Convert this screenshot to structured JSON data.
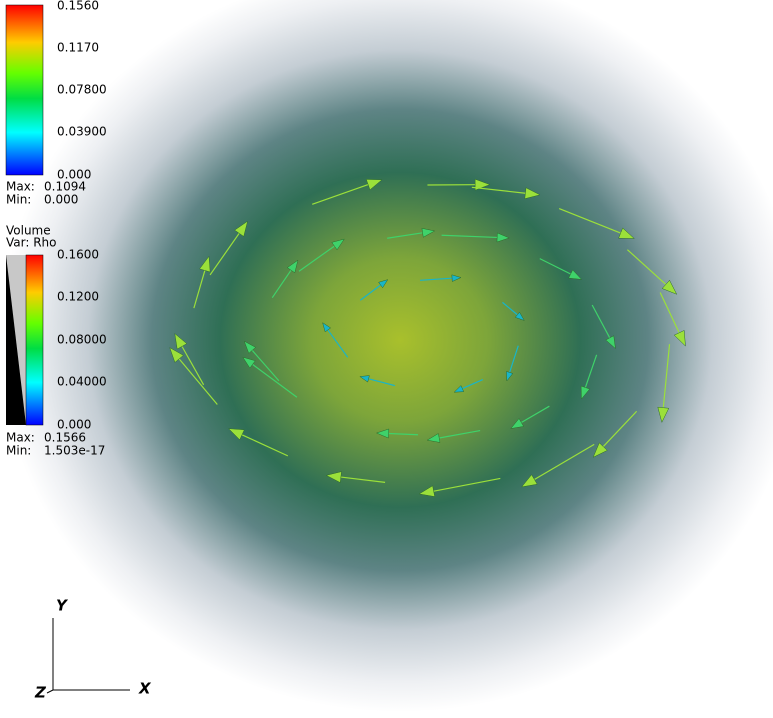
{
  "legend_top": {
    "ticks": [
      "0.1560",
      "0.1170",
      "0.07800",
      "0.03900",
      "0.000"
    ],
    "max_label": "Max:",
    "max_value": "0.1094",
    "min_label": "Min:",
    "min_value": "0.000"
  },
  "legend_volume": {
    "title": "Volume",
    "variable": "Var: Rho",
    "ticks": [
      "0.1600",
      "0.1200",
      "0.08000",
      "0.04000",
      "0.000"
    ],
    "max_label": "Max:",
    "max_value": "0.1566",
    "min_label": "Min:",
    "min_value": "1.503e-17"
  },
  "axes": {
    "y": "Y",
    "x": "X",
    "z": "Z"
  }
}
